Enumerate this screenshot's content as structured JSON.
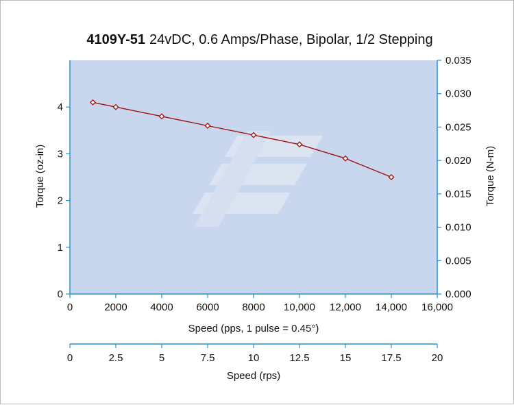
{
  "chart_data": {
    "type": "line",
    "title": "24vDC, 0.6 Amps/Phase, Bipolar, 1/2 Stepping",
    "title_bold": "4109Y-51",
    "xlabel": "Speed (pps, 1 pulse = 0.45°)",
    "xlabel2": "Speed (rps)",
    "ylabel": "Torque (oz-in)",
    "ylabel2": "Torque (N-m)",
    "xlim": [
      0,
      16000
    ],
    "ylim": [
      0,
      5
    ],
    "y2lim": [
      0,
      0.035
    ],
    "x2lim": [
      0,
      20
    ],
    "x_ticks": [
      "0",
      "2000",
      "4000",
      "6000",
      "8000",
      "10,000",
      "12,000",
      "14,000",
      "16,000"
    ],
    "y_ticks": [
      "0",
      "1",
      "2",
      "3",
      "4"
    ],
    "y2_ticks": [
      "0.000",
      "0.005",
      "0.010",
      "0.015",
      "0.020",
      "0.025",
      "0.030",
      "0.035"
    ],
    "x2_ticks": [
      "0",
      "2.5",
      "5",
      "7.5",
      "10",
      "12.5",
      "15",
      "17.5",
      "20"
    ],
    "x": [
      1000,
      2000,
      4000,
      6000,
      8000,
      10000,
      12000,
      14000
    ],
    "y": [
      4.1,
      4.0,
      3.8,
      3.6,
      3.4,
      3.2,
      2.9,
      2.5
    ],
    "colors": {
      "plot_bg": "#c8d6ee",
      "axis": "#2a8fcf",
      "series": "#a01010",
      "watermark": "#e0e6f2"
    }
  }
}
